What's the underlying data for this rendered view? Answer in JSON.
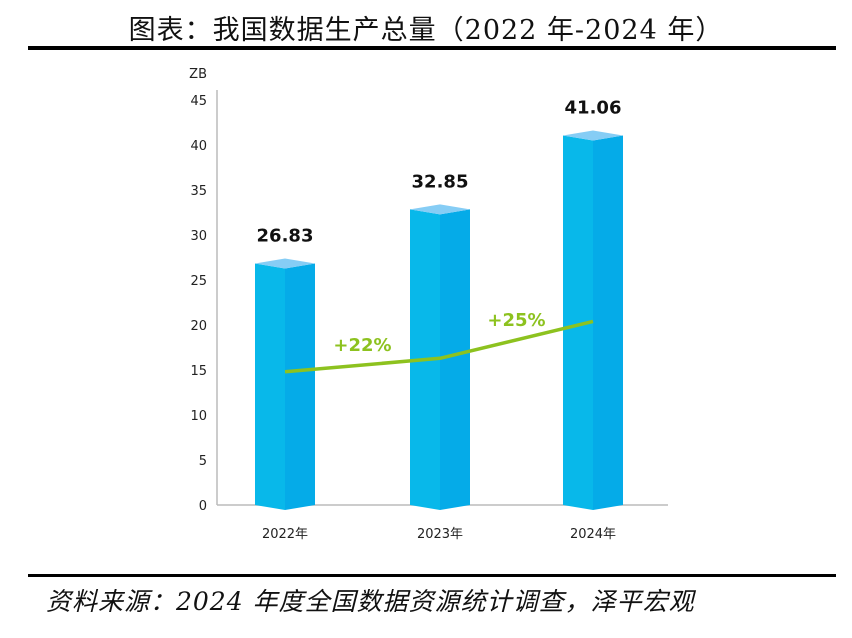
{
  "title": "图表：我国数据生产总量（2022 年-2024 年）",
  "source": "资料来源：2024 年度全国数据资源统计调查，泽平宏观",
  "chart_data": {
    "type": "bar",
    "title": "",
    "ylabel": "ZB",
    "xlabel": "",
    "ylim": [
      0,
      45
    ],
    "yticks": [
      0,
      5,
      10,
      15,
      20,
      25,
      30,
      35,
      40,
      45
    ],
    "grid": false,
    "categories": [
      "2022年",
      "2023年",
      "2024年"
    ],
    "values": [
      26.83,
      32.85,
      41.06
    ],
    "value_labels": [
      "26.83",
      "32.85",
      "41.06"
    ],
    "trend_line": {
      "values": [
        14.8,
        16.3,
        20.4
      ],
      "growth_labels": [
        "+22%",
        "+25%"
      ]
    },
    "colors": {
      "bar_front": "#08B8EA",
      "bar_side": "#05ABE8",
      "bar_top": "#86CDF5",
      "trend": "#8DC21F",
      "axis": "#BBBBBB"
    }
  }
}
